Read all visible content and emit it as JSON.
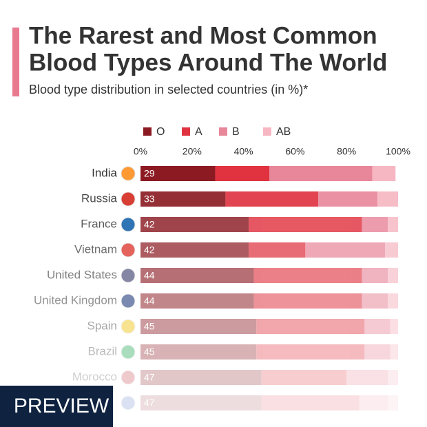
{
  "chart_data": {
    "type": "stacked-bar-horizontal",
    "title_lines": [
      "The Rarest and Most Common",
      "Blood Types Around The World"
    ],
    "subtitle": "Blood type distribution in selected countries (in %)*",
    "categories": [
      "India",
      "Russia",
      "France",
      "Vietnam",
      "United States",
      "United Kingdom",
      "Spain",
      "Brazil",
      "Morocco",
      null
    ],
    "series": [
      {
        "name": "O",
        "color": "#8b1a22",
        "values": [
          29,
          33,
          42,
          42,
          44,
          44,
          45,
          45,
          47,
          47
        ]
      },
      {
        "name": "A",
        "color": "#e0323f",
        "values": [
          21,
          36,
          44,
          22,
          42,
          42,
          42,
          42,
          33,
          38
        ]
      },
      {
        "name": "B",
        "color": "#e8869a",
        "values": [
          40,
          23,
          10,
          31,
          10,
          10,
          10,
          10,
          16,
          11
        ]
      },
      {
        "name": "AB",
        "color": "#f6b7c2",
        "values": [
          9,
          8,
          4,
          5,
          4,
          4,
          3,
          3,
          4,
          4
        ]
      }
    ],
    "xlim": [
      0,
      100
    ],
    "xticks": [
      {
        "value": 0,
        "label": "0%"
      },
      {
        "value": 20,
        "label": "20%"
      },
      {
        "value": 40,
        "label": "40%"
      },
      {
        "value": 60,
        "label": "60%"
      },
      {
        "value": 80,
        "label": "80%"
      },
      {
        "value": 100,
        "label": "100%"
      }
    ],
    "legend": "top"
  },
  "banner": "PREVIEW"
}
